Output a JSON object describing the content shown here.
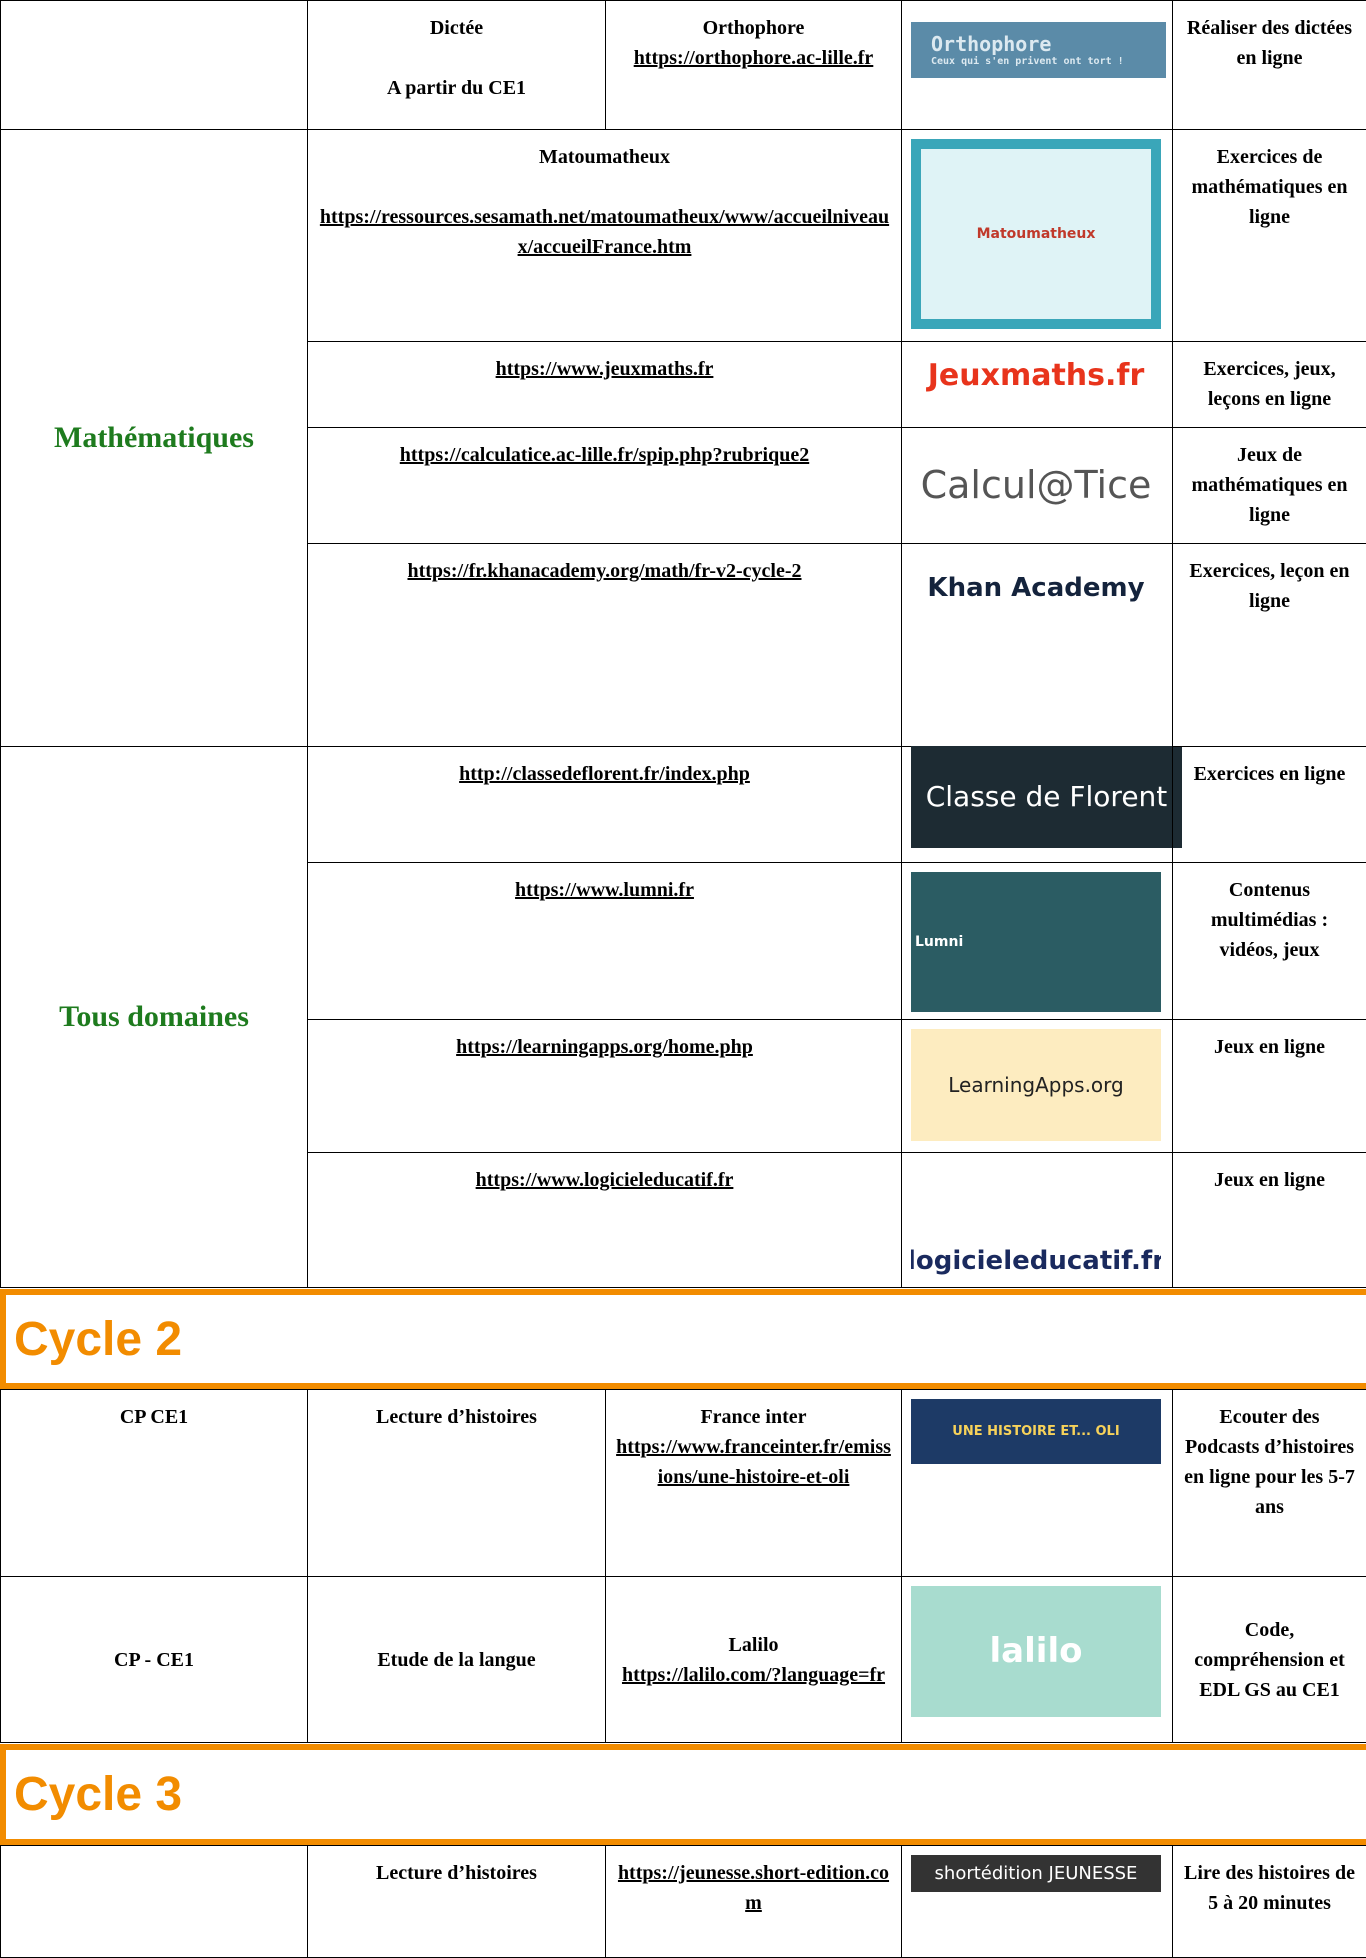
{
  "row_dictee": {
    "subject": "Dictée",
    "level": "A partir du CE1",
    "site": "Orthophore",
    "url": "https://orthophore.ac-lille.fr",
    "logo": "Orthophore",
    "logo_tagline": "Ceux qui s'en privent ont tort !",
    "description": "Réaliser des dictées en ligne"
  },
  "mathematiques": {
    "title": "Mathématiques",
    "rows": [
      {
        "name": "Matoumatheux",
        "url": "https://ressources.sesamath.net/matoumatheux/www/accueilniveaux/accueilFrance.htm",
        "logo": "Matoumatheux",
        "description": "Exercices de mathématiques en ligne"
      },
      {
        "url": "https://www.jeuxmaths.fr",
        "logo": "Jeuxmaths.fr",
        "description": "Exercices, jeux, leçons en ligne"
      },
      {
        "url": "https://calculatice.ac-lille.fr/spip.php?rubrique2",
        "logo": "Calcul@Tice",
        "description": "Jeux de mathématiques en ligne"
      },
      {
        "url": "https://fr.khanacademy.org/math/fr-v2-cycle-2",
        "logo": "Khan Academy",
        "description": "Exercices, leçon en ligne"
      }
    ]
  },
  "tous_domaines": {
    "title": "Tous domaines",
    "rows": [
      {
        "url": "http://classedeflorent.fr/index.php",
        "logo": "Classe de Florent",
        "description": "Exercices en ligne"
      },
      {
        "url": "https://www.lumni.fr",
        "logo": "Lumni",
        "description": "Contenus multimédias : vidéos, jeux"
      },
      {
        "url": "https://learningapps.org/home.php",
        "logo": "LearningApps.org",
        "description": "Jeux en ligne"
      },
      {
        "url": "https://www.logicieleducatif.fr",
        "logo": "logicieleducatif.fr",
        "description": "Jeux en ligne"
      }
    ]
  },
  "cycle2": {
    "title": "Cycle 2",
    "rows": [
      {
        "level": "CP CE1",
        "activity": "Lecture d’histoires",
        "site": "France inter",
        "url": "https://www.franceinter.fr/emissions/une-histoire-et-oli",
        "logo": "UNE HISTOIRE ET... OLI",
        "description": "Ecouter des Podcasts d’histoires en ligne pour les 5-7 ans"
      },
      {
        "level": "CP - CE1",
        "activity": "Etude de la langue",
        "site": "Lalilo",
        "url": "https://lalilo.com/?language=fr",
        "logo": "lalilo",
        "description": "Code, compréhension et EDL GS au CE1"
      }
    ]
  },
  "cycle3": {
    "title": "Cycle 3",
    "rows": [
      {
        "activity": "Lecture d’histoires",
        "url": "https://jeunesse.short-edition.com",
        "logo": "shortédition JEUNESSE",
        "description": "Lire des histoires de 5 à 20 minutes"
      }
    ]
  }
}
